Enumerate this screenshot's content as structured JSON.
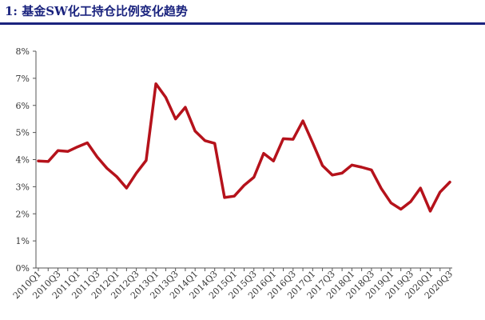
{
  "title": "1: 基金SW化工持仓比例变化趋势",
  "chart_data": {
    "type": "line",
    "title": "1: 基金SW化工持仓比例变化趋势",
    "xlabel": "",
    "ylabel": "",
    "ylim": [
      0,
      8
    ],
    "yticks": [
      "0%",
      "1%",
      "2%",
      "3%",
      "4%",
      "5%",
      "6%",
      "7%",
      "8%"
    ],
    "grid": false,
    "legend": "none",
    "line_color": "#b5121b",
    "categories": [
      "2010Q1",
      "2010Q2",
      "2010Q3",
      "2010Q4",
      "2011Q1",
      "2011Q2",
      "2011Q3",
      "2011Q4",
      "2012Q1",
      "2012Q2",
      "2012Q3",
      "2012Q4",
      "2013Q1",
      "2013Q2",
      "2013Q3",
      "2013Q4",
      "2014Q1",
      "2014Q2",
      "2014Q3",
      "2014Q4",
      "2015Q1",
      "2015Q2",
      "2015Q3",
      "2015Q4",
      "2016Q1",
      "2016Q2",
      "2016Q3",
      "2016Q4",
      "2017Q1",
      "2017Q2",
      "2017Q3",
      "2017Q4",
      "2018Q1",
      "2018Q2",
      "2018Q3",
      "2018Q4",
      "2019Q1",
      "2019Q2",
      "2019Q3",
      "2019Q4",
      "2020Q1",
      "2020Q2",
      "2020Q3"
    ],
    "tick_labels": [
      "2010Q1",
      "2010Q3",
      "2011Q1",
      "2011Q3",
      "2012Q1",
      "2012Q3",
      "2013Q1",
      "2013Q3",
      "2014Q1",
      "2014Q3",
      "2015Q1",
      "2015Q3",
      "2016Q1",
      "2016Q3",
      "2017Q1",
      "2017Q3",
      "2018Q1",
      "2018Q3",
      "2019Q1",
      "2019Q3",
      "2020Q1",
      "2020Q3"
    ],
    "values": [
      3.95,
      3.93,
      4.33,
      4.3,
      4.47,
      4.62,
      4.1,
      3.68,
      3.37,
      2.95,
      3.5,
      3.97,
      6.8,
      6.3,
      5.5,
      5.93,
      5.05,
      4.7,
      4.6,
      2.6,
      2.65,
      3.05,
      3.35,
      4.23,
      3.95,
      4.77,
      4.75,
      5.43,
      4.62,
      3.78,
      3.43,
      3.5,
      3.8,
      3.72,
      3.62,
      2.93,
      2.4,
      2.17,
      2.45,
      2.95,
      2.1,
      2.8,
      3.17
    ]
  }
}
